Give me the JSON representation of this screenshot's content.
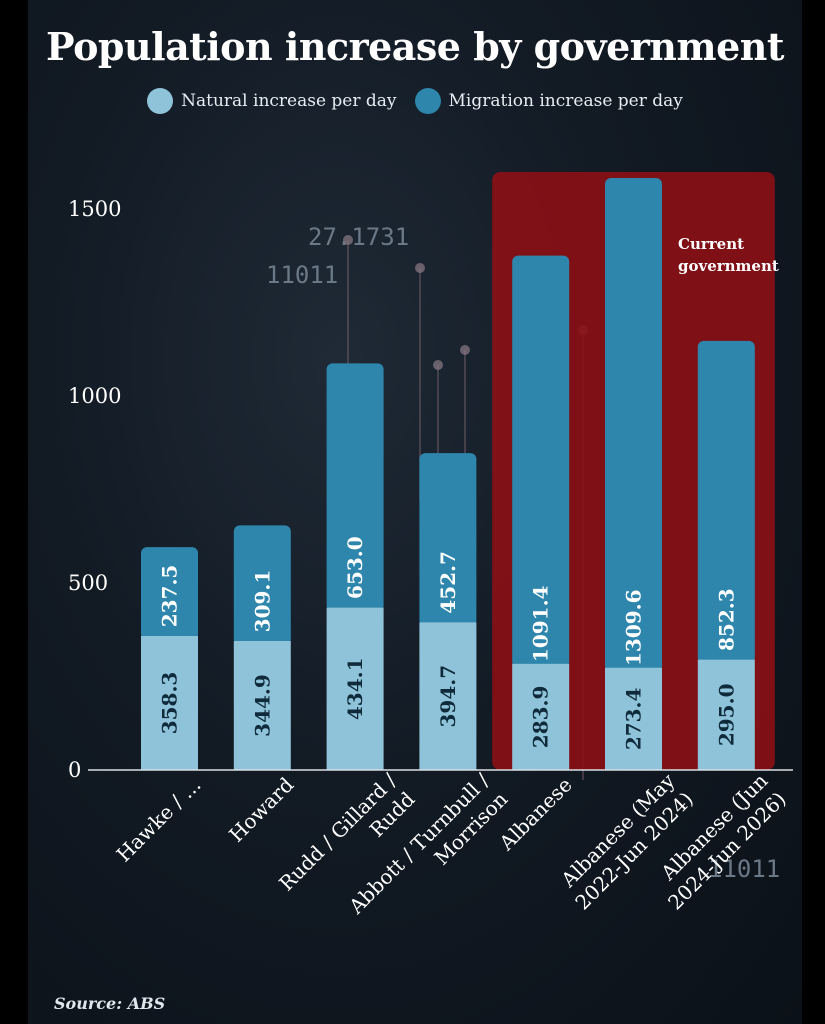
{
  "chart_data": {
    "type": "bar",
    "stacked": true,
    "title": "Population increase by government",
    "categories": [
      "Hawke / ...",
      "Howard",
      "Rudd / Gillard / Rudd",
      "Abbott / Turnbull / Morrison",
      "Albanese",
      "Albanese (May 2022-Jun 2024)",
      "Albanese (Jun 2024-Jun 2026)"
    ],
    "category_lines": [
      [
        "Hawke / ..."
      ],
      [
        "Howard"
      ],
      [
        "Rudd / Gillard /",
        "Rudd"
      ],
      [
        "Abbott / Turnbull /",
        "Morrison"
      ],
      [
        "Albanese"
      ],
      [
        "Albanese (May",
        "2022-Jun 2024)"
      ],
      [
        "Albanese (Jun",
        "2024-Jun 2026)"
      ]
    ],
    "series": [
      {
        "name": "Natural increase per day",
        "color": "#8fc3d9",
        "values": [
          358.3,
          344.9,
          434.1,
          394.7,
          283.9,
          273.4,
          295.0
        ],
        "labels": [
          "358.3",
          "344.9",
          "434.1",
          "394.7",
          "283.9",
          "273.4",
          "295.0"
        ]
      },
      {
        "name": "Migration increase per day",
        "color": "#2e86ad",
        "values": [
          237.5,
          309.1,
          653.0,
          452.7,
          1091.4,
          1309.6,
          852.3
        ],
        "labels": [
          "237.5",
          "309.1",
          "653.0",
          "452.7",
          "1091.4",
          "1309.6",
          "852.3"
        ]
      }
    ],
    "yticks": [
      0,
      500,
      1000,
      1500
    ],
    "ytick_labels": [
      "0",
      "500",
      "1000",
      "1500"
    ],
    "ylim": [
      0,
      1560
    ],
    "highlight": {
      "from_category": 4,
      "to_category": 6,
      "label_lines": [
        "Current",
        "government"
      ],
      "color": "#8b0f15"
    },
    "legend_position": "top-center",
    "grid": false
  },
  "deco_texts": [
    "27.1731",
    "11011",
    "11011"
  ],
  "source": "Source: ABS"
}
